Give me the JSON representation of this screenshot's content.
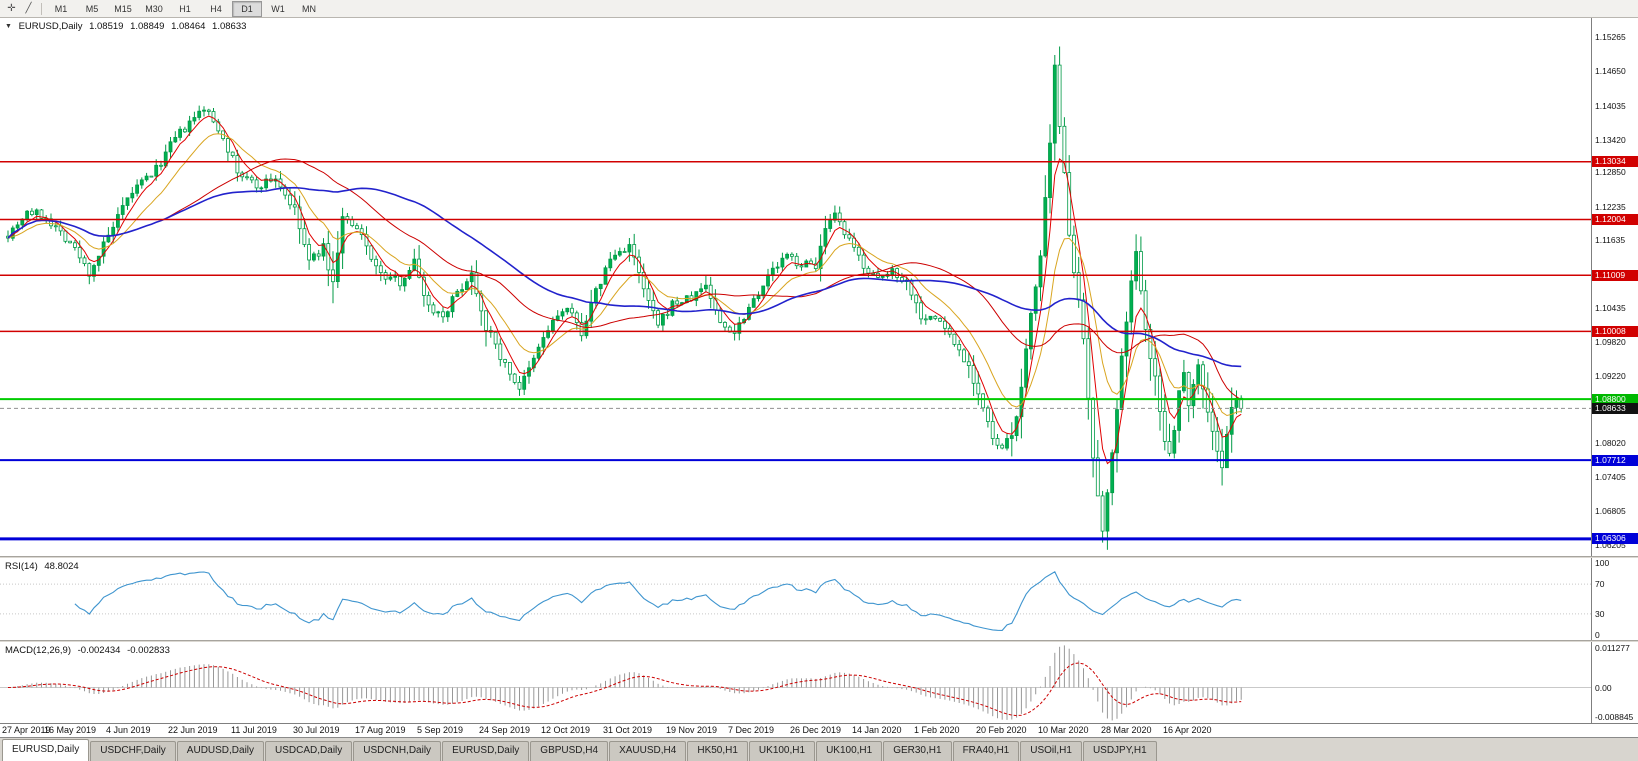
{
  "toolbar": {
    "tool_icons": [
      {
        "name": "crosshair-tool-icon",
        "glyph": "✛"
      },
      {
        "name": "trendline-tool-icon",
        "glyph": "╱"
      }
    ],
    "timeframes": [
      {
        "label": "M1",
        "active": false
      },
      {
        "label": "M5",
        "active": false
      },
      {
        "label": "M15",
        "active": false
      },
      {
        "label": "M30",
        "active": false
      },
      {
        "label": "H1",
        "active": false
      },
      {
        "label": "H4",
        "active": false
      },
      {
        "label": "D1",
        "active": true
      },
      {
        "label": "W1",
        "active": false
      },
      {
        "label": "MN",
        "active": false
      }
    ]
  },
  "price_panel": {
    "title": "EURUSD,Daily",
    "open": "1.08519",
    "high": "1.08849",
    "low": "1.08464",
    "close": "1.08633"
  },
  "rsi_panel": {
    "label": "RSI(14)",
    "value": "48.8024"
  },
  "macd_panel": {
    "label": "MACD(12,26,9)",
    "value1": "-0.002434",
    "value2": "-0.002833"
  },
  "chart_data": {
    "type": "candlestick",
    "symbol": "EURUSD",
    "timeframe": "Daily",
    "x_labels": [
      "27 Apr 2019",
      "16 May 2019",
      "4 Jun 2019",
      "22 Jun 2019",
      "11 Jul 2019",
      "30 Jul 2019",
      "17 Aug 2019",
      "5 Sep 2019",
      "24 Sep 2019",
      "12 Oct 2019",
      "31 Oct 2019",
      "19 Nov 2019",
      "7 Dec 2019",
      "26 Dec 2019",
      "14 Jan 2020",
      "1 Feb 2020",
      "20 Feb 2020",
      "10 Mar 2020",
      "28 Mar 2020",
      "16 Apr 2020"
    ],
    "candles_per_label": 13,
    "num_candles": 259,
    "price_axis": {
      "max": 1.156,
      "min": 1.06,
      "ticks": [
        "1.15265",
        "1.14650",
        "1.14035",
        "1.13420",
        "1.12850",
        "1.12235",
        "1.11635",
        "1.10435",
        "1.09820",
        "1.09220",
        "1.08020",
        "1.07405",
        "1.06805",
        "1.06205"
      ]
    },
    "levels": [
      {
        "price": 1.13034,
        "label": "1.13034",
        "color": "#d10000",
        "width": 1.5
      },
      {
        "price": 1.12004,
        "label": "1.12004",
        "color": "#d10000",
        "width": 1.5
      },
      {
        "price": 1.11009,
        "label": "1.11009",
        "color": "#d10000",
        "width": 1.5
      },
      {
        "price": 1.10008,
        "label": "1.10008",
        "color": "#d10000",
        "width": 1.5
      },
      {
        "price": 1.088,
        "label": "1.08800",
        "color": "#00cc00",
        "width": 2,
        "box_bg": "#00b800"
      },
      {
        "price": 1.08633,
        "label": "1.08633",
        "color": "#909090",
        "width": 1,
        "dash": "4,3",
        "box_bg": "#111111"
      },
      {
        "price": 1.07712,
        "label": "1.07712",
        "color": "#0000d8",
        "width": 2
      },
      {
        "price": 1.06306,
        "label": "1.06306",
        "color": "#0000d8",
        "width": 3
      }
    ],
    "candle_colors": {
      "up_fill": "#00b050",
      "down_fill": "#ffffff",
      "outline": "#009a46"
    },
    "moving_averages": [
      {
        "type": "ema",
        "period": 5,
        "color": "#e00000",
        "width": 1
      },
      {
        "type": "ema",
        "period": 13,
        "color": "#d9a520",
        "width": 1
      },
      {
        "type": "sma",
        "period": 34,
        "color": "#cc0000",
        "width": 1
      },
      {
        "type": "sma",
        "period": 55,
        "color": "#2222cc",
        "width": 1.6
      }
    ],
    "price_path_anchors": [
      [
        0,
        1.1175
      ],
      [
        4,
        1.1215
      ],
      [
        8,
        1.1205
      ],
      [
        13,
        1.116
      ],
      [
        17,
        1.1105
      ],
      [
        21,
        1.117
      ],
      [
        26,
        1.125
      ],
      [
        31,
        1.129
      ],
      [
        35,
        1.1345
      ],
      [
        39,
        1.138
      ],
      [
        41,
        1.14
      ],
      [
        45,
        1.135
      ],
      [
        48,
        1.1285
      ],
      [
        52,
        1.126
      ],
      [
        56,
        1.1275
      ],
      [
        60,
        1.1215
      ],
      [
        63,
        1.1125
      ],
      [
        66,
        1.115
      ],
      [
        68,
        1.1085
      ],
      [
        70,
        1.1205
      ],
      [
        74,
        1.117
      ],
      [
        78,
        1.11
      ],
      [
        82,
        1.109
      ],
      [
        85,
        1.1125
      ],
      [
        88,
        1.1045
      ],
      [
        91,
        1.103
      ],
      [
        94,
        1.107
      ],
      [
        97,
        1.1105
      ],
      [
        100,
        1.101
      ],
      [
        104,
        1.094
      ],
      [
        107,
        1.09
      ],
      [
        109,
        1.093
      ],
      [
        112,
        1.099
      ],
      [
        115,
        1.103
      ],
      [
        117,
        1.104
      ],
      [
        120,
        1.1
      ],
      [
        123,
        1.107
      ],
      [
        126,
        1.113
      ],
      [
        130,
        1.1155
      ],
      [
        133,
        1.1075
      ],
      [
        136,
        1.101
      ],
      [
        139,
        1.105
      ],
      [
        143,
        1.106
      ],
      [
        146,
        1.1085
      ],
      [
        149,
        1.1015
      ],
      [
        152,
        1.1
      ],
      [
        156,
        1.106
      ],
      [
        160,
        1.111
      ],
      [
        163,
        1.1135
      ],
      [
        166,
        1.112
      ],
      [
        169,
        1.112
      ],
      [
        171,
        1.118
      ],
      [
        173,
        1.1205
      ],
      [
        176,
        1.116
      ],
      [
        179,
        1.112
      ],
      [
        182,
        1.109
      ],
      [
        185,
        1.111
      ],
      [
        188,
        1.109
      ],
      [
        191,
        1.103
      ],
      [
        195,
        1.102
      ],
      [
        198,
        1.098
      ],
      [
        201,
        1.094
      ],
      [
        204,
        1.0865
      ],
      [
        206,
        1.0805
      ],
      [
        208,
        1.079
      ],
      [
        210,
        1.0815
      ],
      [
        212,
        1.0895
      ],
      [
        214,
        1.1035
      ],
      [
        216,
        1.1135
      ],
      [
        218,
        1.133
      ],
      [
        219,
        1.147
      ],
      [
        220,
        1.136
      ],
      [
        221,
        1.129
      ],
      [
        222,
        1.118
      ],
      [
        223,
        1.111
      ],
      [
        224,
        1.105
      ],
      [
        225,
        1.098
      ],
      [
        226,
        1.088
      ],
      [
        227,
        1.077
      ],
      [
        228,
        1.07
      ],
      [
        229,
        1.0645
      ],
      [
        230,
        1.072
      ],
      [
        231,
        1.079
      ],
      [
        232,
        1.0855
      ],
      [
        233,
        1.095
      ],
      [
        234,
        1.1025
      ],
      [
        235,
        1.1085
      ],
      [
        236,
        1.114
      ],
      [
        237,
        1.108
      ],
      [
        238,
        1.101
      ],
      [
        239,
        1.096
      ],
      [
        240,
        1.092
      ],
      [
        241,
        1.0855
      ],
      [
        242,
        1.0805
      ],
      [
        243,
        1.079
      ],
      [
        244,
        1.083
      ],
      [
        245,
        1.089
      ],
      [
        246,
        1.093
      ],
      [
        247,
        1.0875
      ],
      [
        248,
        1.091
      ],
      [
        249,
        1.094
      ],
      [
        250,
        1.09
      ],
      [
        251,
        1.086
      ],
      [
        252,
        1.082
      ],
      [
        253,
        1.079
      ],
      [
        254,
        1.0755
      ],
      [
        255,
        1.0815
      ],
      [
        256,
        1.086
      ],
      [
        257,
        1.0885
      ],
      [
        258,
        1.08633
      ]
    ],
    "rsi": {
      "period": 14,
      "levels": [
        100,
        70,
        30,
        0
      ],
      "line_color": "#3f95cf",
      "level_line_color": "#c8c8c8"
    },
    "macd": {
      "fast": 12,
      "slow": 26,
      "signal": 9,
      "axis_labels": {
        "top": "0.011277",
        "zero": "0.00",
        "bottom": "-0.008845"
      },
      "hist_color": "#989898",
      "signal_color": "#cc0000",
      "zero_line_color": "#c9c9c9"
    }
  },
  "tabs": [
    {
      "label": "EURUSD,Daily",
      "active": true
    },
    {
      "label": "USDCHF,Daily",
      "active": false
    },
    {
      "label": "AUDUSD,Daily",
      "active": false
    },
    {
      "label": "USDCAD,Daily",
      "active": false
    },
    {
      "label": "USDCNH,Daily",
      "active": false
    },
    {
      "label": "EURUSD,Daily",
      "active": false
    },
    {
      "label": "GBPUSD,H4",
      "active": false
    },
    {
      "label": "XAUUSD,H4",
      "active": false
    },
    {
      "label": "HK50,H1",
      "active": false
    },
    {
      "label": "UK100,H1",
      "active": false
    },
    {
      "label": "UK100,H1",
      "active": false
    },
    {
      "label": "GER30,H1",
      "active": false
    },
    {
      "label": "FRA40,H1",
      "active": false
    },
    {
      "label": "USOil,H1",
      "active": false
    },
    {
      "label": "USDJPY,H1",
      "active": false
    }
  ]
}
